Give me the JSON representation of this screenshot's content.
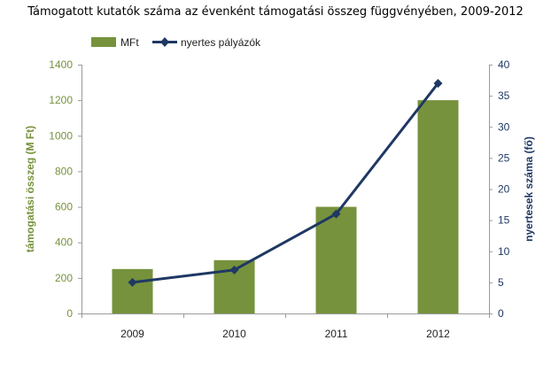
{
  "title": "Támogatott kutatók száma az évenként támogatási összeg függvényében, 2009-2012",
  "chart_data": {
    "type": "bar",
    "categories": [
      "2009",
      "2010",
      "2011",
      "2012"
    ],
    "series": [
      {
        "name": "MFt",
        "type": "bar",
        "axis": "left",
        "values": [
          250,
          300,
          600,
          1200
        ],
        "color": "#76923c"
      },
      {
        "name": "nyertes pályázók",
        "type": "line",
        "axis": "right",
        "values": [
          5,
          7,
          16,
          37
        ],
        "color": "#1f3864"
      }
    ],
    "ylabel_left": "támogatási összeg (M Ft)",
    "ylabel_right": "nyertesek száma (fő)",
    "ylim_left": [
      0,
      1400
    ],
    "ylim_right": [
      0,
      40
    ],
    "yticks_left": [
      "0",
      "200",
      "400",
      "600",
      "800",
      "1000",
      "1200",
      "1400"
    ],
    "yticks_right": [
      "0",
      "5",
      "10",
      "15",
      "20",
      "25",
      "30",
      "35",
      "40"
    ],
    "left_axis_color": "#76923c",
    "right_axis_color": "#1f3864",
    "legend_position": "top-left",
    "grid": false
  }
}
